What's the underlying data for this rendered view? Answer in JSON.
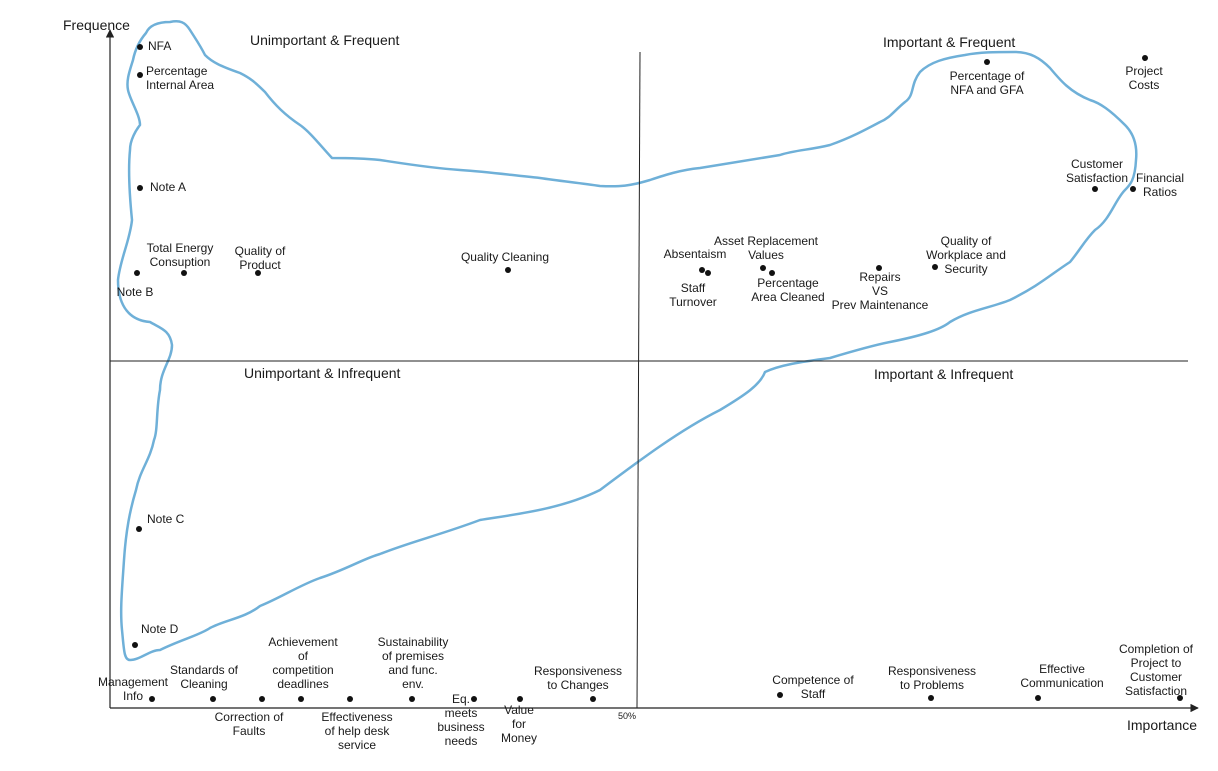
{
  "axes": {
    "x_label": "Importance",
    "y_label": "Frequence",
    "x_mid_label": "50%"
  },
  "quadrants": {
    "top_left": "Unimportant  & Frequent",
    "top_right": "Important  & Frequent",
    "bottom_left": "Unimportant  & Infrequent",
    "bottom_right": "Important  & Infrequent"
  },
  "points": [
    {
      "id": "nfa",
      "lines": [
        "NFA"
      ]
    },
    {
      "id": "percentage-internal-area",
      "lines": [
        "Percentage",
        "Internal Area"
      ]
    },
    {
      "id": "note-a",
      "lines": [
        "Note A"
      ]
    },
    {
      "id": "note-b",
      "lines": [
        "Note B"
      ]
    },
    {
      "id": "total-energy-consuption",
      "lines": [
        "Total Energy",
        "Consuption"
      ]
    },
    {
      "id": "quality-of-product",
      "lines": [
        "Quality of",
        "Product"
      ]
    },
    {
      "id": "quality-cleaning",
      "lines": [
        "Quality Cleaning"
      ]
    },
    {
      "id": "absentaism",
      "lines": [
        "Absentaism"
      ]
    },
    {
      "id": "staff-turnover",
      "lines": [
        "Staff",
        "Turnover"
      ]
    },
    {
      "id": "asset-replacement-values",
      "lines": [
        "Asset Replacement",
        "Values"
      ]
    },
    {
      "id": "percentage-area-cleaned",
      "lines": [
        "Percentage",
        "Area Cleaned"
      ]
    },
    {
      "id": "repairs-vs-prev-maintenance",
      "lines": [
        "Repairs",
        "VS",
        "Prev Maintenance"
      ]
    },
    {
      "id": "quality-of-workplace-and-security",
      "lines": [
        "Quality of",
        "Workplace and",
        "Security"
      ]
    },
    {
      "id": "percentage-of-nfa-and-gfa",
      "lines": [
        "Percentage of",
        "NFA and GFA"
      ]
    },
    {
      "id": "project-costs",
      "lines": [
        "Project",
        "Costs"
      ]
    },
    {
      "id": "customer-satisfaction",
      "lines": [
        "Customer",
        "Satisfaction"
      ]
    },
    {
      "id": "financial-ratios",
      "lines": [
        "Financial",
        "Ratios"
      ]
    },
    {
      "id": "note-c",
      "lines": [
        "Note C"
      ]
    },
    {
      "id": "note-d",
      "lines": [
        "Note D"
      ]
    },
    {
      "id": "management-info",
      "lines": [
        "Management",
        "Info"
      ]
    },
    {
      "id": "standards-of-cleaning",
      "lines": [
        "Standards of",
        "Cleaning"
      ]
    },
    {
      "id": "correction-of-faults",
      "lines": [
        "Correction of",
        "Faults"
      ]
    },
    {
      "id": "achievement-of-competition-deadlines",
      "lines": [
        "Achievement",
        "of",
        "competition",
        "deadlines"
      ]
    },
    {
      "id": "effectiveness-of-help-desk-service",
      "lines": [
        "Effectiveness",
        "of help desk",
        "service"
      ]
    },
    {
      "id": "sustainability-of-premises",
      "lines": [
        "Sustainability",
        "of premises",
        "and func.",
        "env."
      ]
    },
    {
      "id": "eq-meets-business-needs",
      "lines": [
        "Eq.",
        "meets",
        "business",
        "needs"
      ]
    },
    {
      "id": "value-for-money",
      "lines": [
        "Value",
        "for",
        "Money"
      ]
    },
    {
      "id": "responsiveness-to-changes",
      "lines": [
        "Responsiveness",
        "to Changes"
      ]
    },
    {
      "id": "competence-of-staff",
      "lines": [
        "Competence of",
        "Staff"
      ]
    },
    {
      "id": "responsiveness-to-problems",
      "lines": [
        "Responsiveness",
        "to Problems"
      ]
    },
    {
      "id": "effective-communication",
      "lines": [
        "Effective",
        "Communication"
      ]
    },
    {
      "id": "completion-of-project",
      "lines": [
        "Completion of",
        "Project to",
        "Customer",
        "Satisfaction"
      ]
    }
  ],
  "colors": {
    "outline": "#6fb0d8",
    "axis": "#222222",
    "dot": "#111111"
  }
}
